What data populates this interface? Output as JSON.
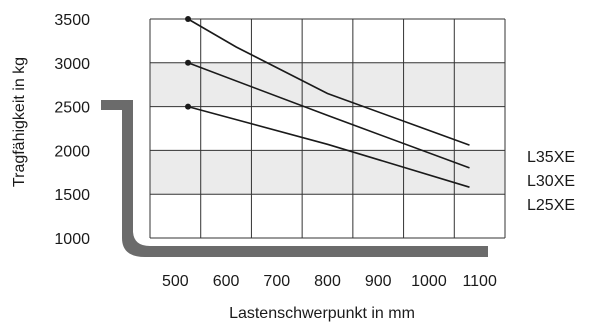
{
  "chart_data": {
    "type": "line",
    "xlabel": "Lastenschwerpunkt in mm",
    "ylabel": "Tragfähigkeit in kg",
    "x_ticks": [
      "500",
      "600",
      "700",
      "800",
      "900",
      "1000",
      "1100"
    ],
    "y_ticks": [
      "1000",
      "1500",
      "2000",
      "2500",
      "3000",
      "3500"
    ],
    "xlim": [
      500,
      1100
    ],
    "ylim": [
      1000,
      3500
    ],
    "grid": true,
    "series": [
      {
        "name": "L35XE",
        "x": [
          525,
          620,
          800,
          1080
        ],
        "y": [
          3500,
          3180,
          2650,
          2060
        ]
      },
      {
        "name": "L30XE",
        "x": [
          525,
          800,
          1080
        ],
        "y": [
          3000,
          2400,
          1800
        ]
      },
      {
        "name": "L25XE",
        "x": [
          525,
          800,
          1080
        ],
        "y": [
          2500,
          2070,
          1580
        ]
      }
    ],
    "colors": {
      "line": "#1a1a1a",
      "band": "#ebebeb",
      "grid": "#333333",
      "fork": "#6b6b6b"
    }
  },
  "icons": {
    "fork": "forklift-fork-icon"
  }
}
